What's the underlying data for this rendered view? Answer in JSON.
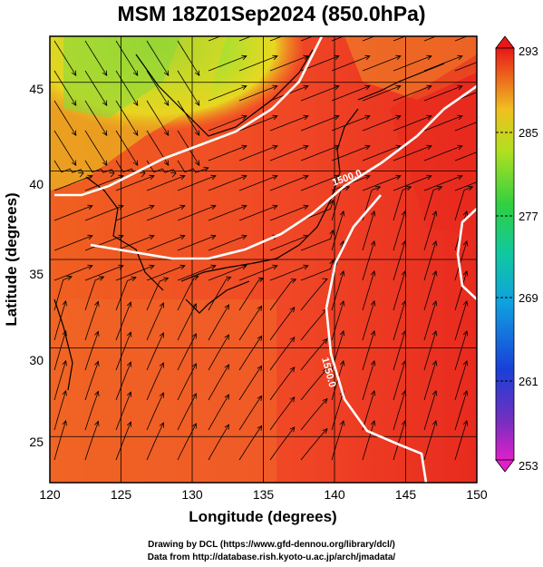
{
  "title": "MSM 18Z01Sep2024 (850.0hPa)",
  "x_axis": {
    "title": "Longitude (degrees)",
    "ticks": [
      "120",
      "125",
      "130",
      "135",
      "140",
      "145",
      "150"
    ],
    "range": [
      120,
      150
    ]
  },
  "y_axis": {
    "title": "Latitude  (degrees)",
    "ticks": [
      "25",
      "30",
      "35",
      "40",
      "45"
    ],
    "range": [
      22.4,
      47.6
    ]
  },
  "colorbar": {
    "labels": [
      "293",
      "285",
      "277",
      "269",
      "261",
      "253"
    ],
    "range": [
      253,
      293
    ]
  },
  "contour_labels": [
    "1500.0",
    "1550.0"
  ],
  "credits": {
    "line1": "Drawing by DCL (https://www.gfd-dennou.org/library/dcl/)",
    "line2": "Data from http://database.rish.kyoto-u.ac.jp/arch/jmadata/"
  },
  "colors": {
    "warm": "#f0501e",
    "hot": "#e8221e",
    "yellow": "#e8e020",
    "green": "#6fd83a",
    "contour": "#ffffff",
    "stream": "#000000"
  }
}
